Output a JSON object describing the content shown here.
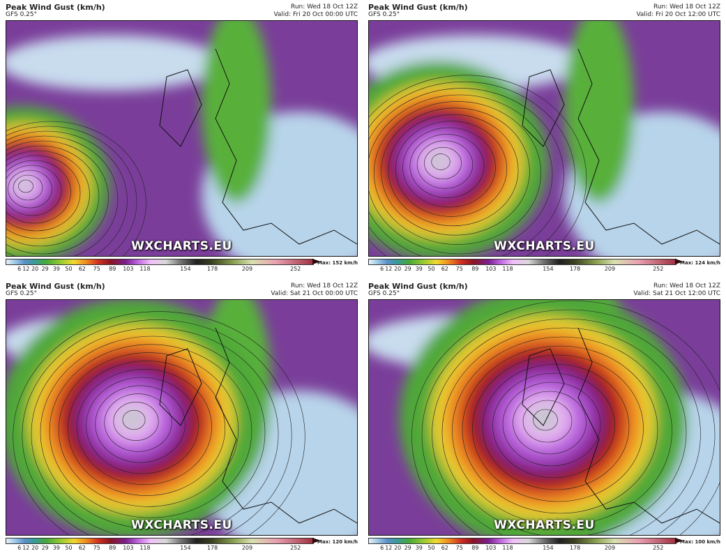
{
  "panels": [
    {
      "title": "Peak Wind Gust (km/h)",
      "model": "GFS 0.25°",
      "run": "Run: Wed 18 Oct 12Z",
      "valid": "Valid: Fri 20 Oct 00:00 UTC",
      "watermark": "WXCHARTS.EU",
      "max": "Max: 152 km/h"
    },
    {
      "title": "Peak Wind Gust (km/h)",
      "model": "GFS 0.25°",
      "run": "Run: Wed 18 Oct 12Z",
      "valid": "Valid: Fri 20 Oct 12:00 UTC",
      "watermark": "WXCHARTS.EU",
      "max": "Max: 124 km/h"
    },
    {
      "title": "Peak Wind Gust (km/h)",
      "model": "GFS 0.25°",
      "run": "Run: Wed 18 Oct 12Z",
      "valid": "Valid: Sat 21 Oct 00:00 UTC",
      "watermark": "WXCHARTS.EU",
      "max": "Max: 120 km/h"
    },
    {
      "title": "Peak Wind Gust (km/h)",
      "model": "GFS 0.25°",
      "run": "Run: Wed 18 Oct 12Z",
      "valid": "Valid: Sat 21 Oct 12:00 UTC",
      "watermark": "WXCHARTS.EU",
      "max": "Max: 100 km/h"
    }
  ],
  "colorbar": {
    "ticks": [
      6,
      12,
      20,
      29,
      39,
      50,
      62,
      75,
      89,
      103,
      118,
      154,
      178,
      209,
      252
    ]
  }
}
